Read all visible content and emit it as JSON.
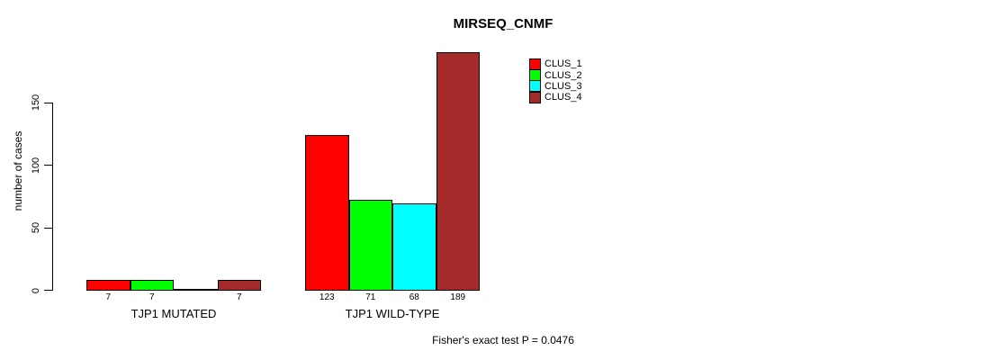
{
  "chart_data": {
    "type": "bar",
    "title": "MIRSEQ_CNMF",
    "ylabel": "number of cases",
    "xlabel": "",
    "ylim": [
      0,
      150
    ],
    "yticks": [
      0,
      50,
      100,
      150
    ],
    "grid": false,
    "legend_position": "top-right-inside",
    "categories": [
      "TJP1 MUTATED",
      "TJP1 WILD-TYPE"
    ],
    "series": [
      {
        "name": "CLUS_1",
        "color": "#FF0000",
        "values": [
          7,
          123
        ]
      },
      {
        "name": "CLUS_2",
        "color": "#00FF00",
        "values": [
          7,
          71
        ]
      },
      {
        "name": "CLUS_3",
        "color": "#00FFFF",
        "values": [
          0,
          68
        ]
      },
      {
        "name": "CLUS_4",
        "color": "#A52A2A",
        "values": [
          7,
          189
        ]
      }
    ],
    "bar_value_labels": {
      "TJP1 MUTATED": [
        "7",
        "7",
        "",
        "7"
      ],
      "TJP1 WILD-TYPE": [
        "123",
        "71",
        "68",
        "189"
      ]
    },
    "annotation": "Fisher's exact test P = 0.0476"
  }
}
